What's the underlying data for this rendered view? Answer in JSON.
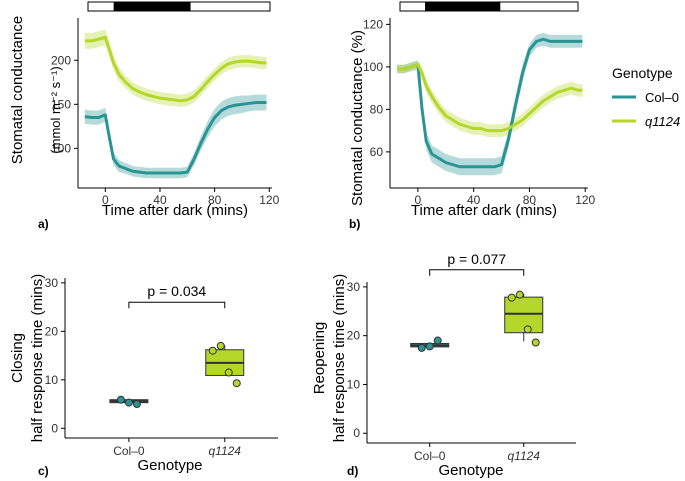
{
  "colors": {
    "col0": "#2a9494",
    "q1124": "#b5d62a",
    "dark_bar": "#000000",
    "axis": "#000000"
  },
  "legend": {
    "title": "Genotype",
    "items": [
      "Col–0",
      "q1124"
    ]
  },
  "chart_data": [
    {
      "panel": "a)",
      "type": "line",
      "xlabel": "Time after dark (mins)",
      "ylabel_line1": "Stomatal conductance",
      "ylabel_line2": "(mmol m⁻² s⁻¹)",
      "xticks": [
        0,
        40,
        80,
        120
      ],
      "yticks": [
        100,
        150,
        200
      ],
      "xlim": [
        -20,
        122
      ],
      "ylim": [
        55,
        248
      ],
      "dark_period": [
        0,
        60
      ],
      "x": [
        -15,
        -10,
        -5,
        0,
        3,
        6,
        10,
        15,
        20,
        25,
        30,
        35,
        40,
        45,
        50,
        55,
        60,
        65,
        70,
        75,
        80,
        85,
        90,
        95,
        100,
        105,
        110,
        115,
        118
      ],
      "series": [
        {
          "name": "Col–0",
          "color_key": "col0",
          "values": [
            136,
            135,
            135,
            138,
            112,
            88,
            80,
            77,
            74,
            73,
            72,
            72,
            72,
            72,
            72,
            72,
            73,
            88,
            106,
            122,
            135,
            143,
            147,
            149,
            150,
            151,
            152,
            152,
            152
          ],
          "error": [
            8,
            8,
            8,
            8,
            8,
            7,
            7,
            6,
            6,
            6,
            6,
            6,
            6,
            6,
            6,
            6,
            6,
            7,
            8,
            9,
            10,
            10,
            10,
            10,
            10,
            9,
            9,
            9,
            9
          ]
        },
        {
          "name": "q1124",
          "color_key": "q1124",
          "values": [
            222,
            222,
            224,
            226,
            212,
            197,
            184,
            175,
            168,
            164,
            161,
            159,
            157,
            156,
            155,
            154,
            155,
            159,
            167,
            176,
            184,
            191,
            196,
            198,
            199,
            199,
            198,
            197,
            197
          ],
          "error": [
            9,
            9,
            9,
            9,
            9,
            8,
            8,
            7,
            7,
            7,
            7,
            7,
            7,
            7,
            7,
            7,
            7,
            7,
            7,
            7,
            7,
            7,
            7,
            7,
            7,
            7,
            7,
            7,
            7
          ]
        }
      ]
    },
    {
      "panel": "b)",
      "type": "line",
      "xlabel": "Time after dark (mins)",
      "ylabel_line1": "Stomatal conductance (%)",
      "xticks": [
        0,
        40,
        80,
        120
      ],
      "yticks": [
        60,
        80,
        100,
        120
      ],
      "xlim": [
        -20,
        122
      ],
      "ylim": [
        43,
        123
      ],
      "dark_period": [
        0,
        60
      ],
      "x": [
        -15,
        -10,
        -5,
        0,
        3,
        6,
        10,
        15,
        20,
        25,
        30,
        35,
        40,
        45,
        50,
        55,
        60,
        65,
        70,
        75,
        80,
        85,
        90,
        95,
        100,
        105,
        110,
        115,
        118
      ],
      "series": [
        {
          "name": "Col–0",
          "color_key": "col0",
          "values": [
            99,
            99,
            100,
            101,
            80,
            65,
            59,
            57,
            55,
            54,
            53,
            53,
            53,
            53,
            53,
            53,
            54,
            66,
            82,
            97,
            108,
            112,
            113,
            112,
            112,
            112,
            112,
            112,
            112
          ],
          "error": [
            2,
            2,
            2,
            2,
            3,
            4,
            4,
            4,
            4,
            4,
            4,
            4,
            4,
            4,
            4,
            4,
            4,
            4,
            4,
            4,
            3,
            3,
            3,
            3,
            3,
            3,
            3,
            3,
            3
          ]
        },
        {
          "name": "q1124",
          "color_key": "q1124",
          "values": [
            99,
            99,
            100,
            101,
            97,
            91,
            86,
            81,
            77,
            75,
            73,
            72,
            71,
            71,
            70,
            70,
            70,
            71,
            73,
            75,
            78,
            81,
            84,
            86,
            88,
            89,
            90,
            89,
            89
          ],
          "error": [
            2,
            2,
            2,
            2,
            3,
            3,
            3,
            3,
            3,
            3,
            3,
            3,
            3,
            3,
            3,
            3,
            3,
            3,
            3,
            3,
            3,
            3,
            3,
            3,
            3,
            3,
            3,
            3,
            3
          ]
        }
      ]
    },
    {
      "panel": "c)",
      "type": "box",
      "xlabel": "Genotype",
      "ylabel_line1": "Closing",
      "ylabel_line2": "half response time (mins)",
      "categories": [
        "Col–0",
        "q1124"
      ],
      "yticks": [
        0,
        10,
        20,
        30
      ],
      "ylim": [
        -2,
        31
      ],
      "boxes": [
        {
          "q1": 5.3,
          "median": 5.6,
          "q3": 5.9,
          "whisker_low": 5.2,
          "whisker_high": 5.9,
          "points": [
            5.9,
            5.3,
            5.0
          ]
        },
        {
          "q1": 10.9,
          "median": 13.5,
          "q3": 16.2,
          "whisker_low": 10.9,
          "whisker_high": 17.1,
          "points": [
            16.0,
            17.0,
            11.5,
            9.3
          ]
        }
      ],
      "significance": {
        "label": "p = 0.034",
        "y": 26
      }
    },
    {
      "panel": "d)",
      "type": "box",
      "xlabel": "Genotype",
      "ylabel_line1": "Reopening",
      "ylabel_line2": "half response time (mins)",
      "categories": [
        "Col–0",
        "q1124"
      ],
      "yticks": [
        0,
        10,
        20,
        30
      ],
      "ylim": [
        -2,
        31
      ],
      "boxes": [
        {
          "q1": 17.7,
          "median": 18.0,
          "q3": 18.4,
          "whisker_low": 17.6,
          "whisker_high": 18.4,
          "points": [
            17.5,
            17.8,
            19.0
          ]
        },
        {
          "q1": 20.6,
          "median": 24.5,
          "q3": 27.9,
          "whisker_low": 18.8,
          "whisker_high": 28.6,
          "points": [
            27.8,
            28.4,
            21.3,
            18.6
          ]
        }
      ],
      "significance": {
        "label": "p = 0.077",
        "y": 33.5
      }
    }
  ]
}
